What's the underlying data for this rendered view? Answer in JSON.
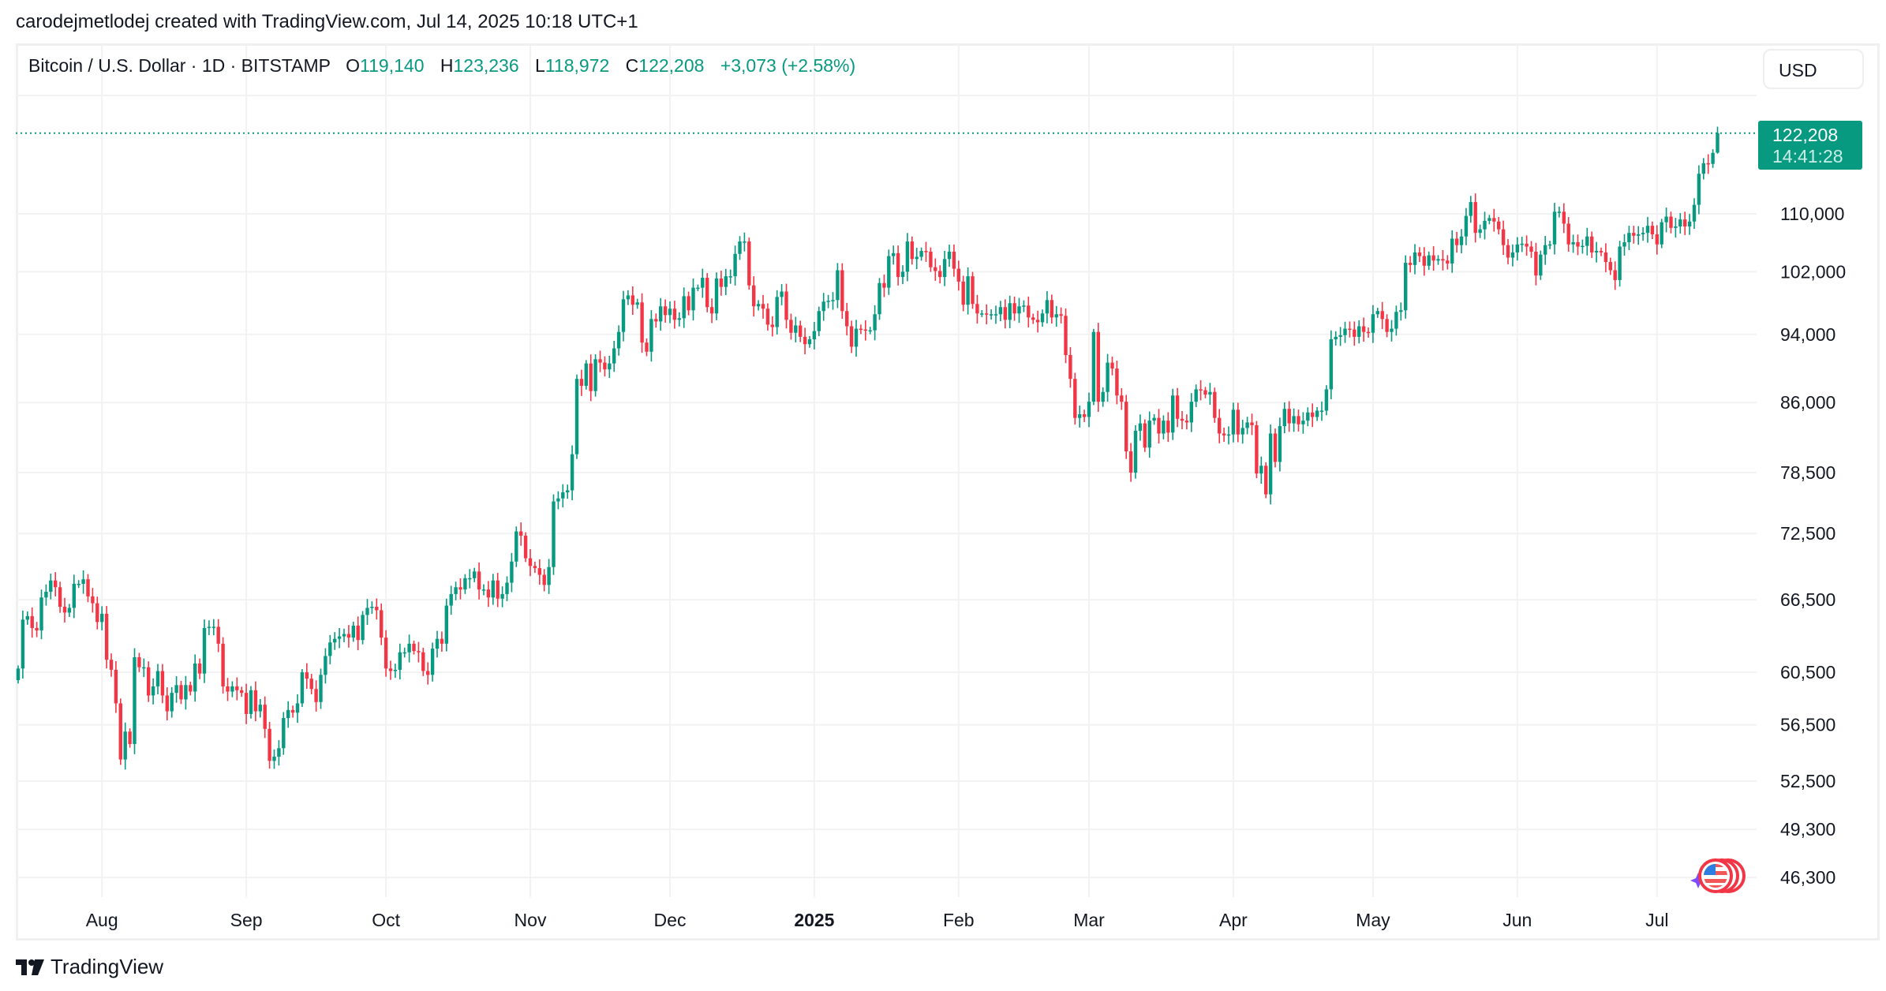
{
  "caption": "carodejmetlodej created with TradingView.com, Jul 14, 2025 10:18 UTC+1",
  "legend": {
    "symbol": "Bitcoin / U.S. Dollar · 1D · BITSTAMP",
    "open_label": "O",
    "open": "119,140",
    "high_label": "H",
    "high": "123,236",
    "low_label": "L",
    "low": "118,972",
    "close_label": "C",
    "close": "122,208",
    "change": "+3,073 (+2.58%)"
  },
  "currency_button": "USD",
  "price_tag": {
    "price": "122,208",
    "countdown": "14:41:28"
  },
  "footer": {
    "brand": "TradingView"
  },
  "colors": {
    "up": "#089981",
    "down": "#f23645",
    "grid": "#f2f2f2",
    "text": "#131722"
  },
  "chart_data": {
    "type": "candlestick",
    "interval": "1D",
    "y_scale": "log",
    "grid": true,
    "x_tick_labels": [
      "Aug",
      "Sep",
      "Oct",
      "Nov",
      "Dec",
      "2025",
      "Feb",
      "Mar",
      "Apr",
      "May",
      "Jun",
      "Jul"
    ],
    "y_ticks": [
      110000,
      102000,
      94000,
      86000,
      78500,
      72500,
      66500,
      60500,
      56500,
      52500,
      49300,
      46300
    ],
    "y_tick_labels": [
      "110,000",
      "102,000",
      "94,000",
      "86,000",
      "78,500",
      "72,500",
      "66,500",
      "60,500",
      "56,500",
      "52,500",
      "49,300",
      "46,300"
    ],
    "last_candle": {
      "open": 119140,
      "high": 123236,
      "low": 118972,
      "close": 122208
    },
    "closes": [
      60800,
      64800,
      65100,
      64100,
      63900,
      66700,
      67200,
      68200,
      67600,
      65900,
      65400,
      65800,
      67900,
      67900,
      68300,
      66800,
      66200,
      64600,
      65300,
      61500,
      60700,
      58100,
      54000,
      56000,
      55100,
      61700,
      60900,
      60900,
      58700,
      59400,
      60600,
      58700,
      57500,
      58900,
      59500,
      58400,
      59500,
      59000,
      61200,
      60400,
      64100,
      64200,
      64200,
      62800,
      59400,
      59000,
      59400,
      59100,
      58900,
      57300,
      59100,
      57500,
      58000,
      56200,
      53900,
      54200,
      54800,
      57000,
      57600,
      57400,
      58100,
      60500,
      60000,
      59200,
      58200,
      60300,
      61800,
      62900,
      63200,
      63400,
      63600,
      63300,
      64300,
      63100,
      65200,
      65800,
      65900,
      65600,
      63300,
      60800,
      60600,
      60700,
      62100,
      62100,
      62800,
      62200,
      62100,
      60600,
      60300,
      62400,
      63200,
      62800,
      66000,
      67000,
      67600,
      67400,
      68400,
      68400,
      69000,
      67400,
      67400,
      66700,
      68200,
      66600,
      67000,
      68000,
      69900,
      72700,
      72300,
      70200,
      69500,
      69300,
      68700,
      67800,
      69400,
      75600,
      75900,
      76500,
      76700,
      80400,
      88700,
      87900,
      90500,
      87300,
      91000,
      90600,
      89800,
      90500,
      92300,
      94300,
      98400,
      98900,
      97700,
      98000,
      93000,
      91900,
      95900,
      95600,
      97500,
      96400,
      97200,
      95800,
      96000,
      98800,
      97000,
      99900,
      99900,
      101200,
      97400,
      96600,
      101100,
      100000,
      101400,
      101400,
      104400,
      106100,
      106100,
      100200,
      97500,
      97800,
      97200,
      95200,
      94900,
      98700,
      99400,
      95800,
      94200,
      95100,
      93700,
      92800,
      93400,
      94400,
      96900,
      98100,
      98200,
      98300,
      102200,
      96900,
      95000,
      92500,
      94700,
      94600,
      94500,
      94500,
      96500,
      100500,
      99900,
      104100,
      104500,
      101300,
      102000,
      106100,
      103700,
      104000,
      104800,
      104700,
      102600,
      102100,
      101300,
      103700,
      104700,
      102400,
      100700,
      97700,
      101400,
      97800,
      96600,
      96600,
      96500,
      96500,
      96500,
      97400,
      95800,
      97900,
      96600,
      97500,
      97600,
      96100,
      95800,
      95500,
      96600,
      98300,
      96100,
      96500,
      96300,
      91500,
      88700,
      84300,
      84700,
      84400,
      86100,
      94300,
      86100,
      87200,
      90600,
      89900,
      86800,
      86100,
      80700,
      78500,
      82900,
      83700,
      81100,
      84000,
      84300,
      82600,
      84000,
      82700,
      86800,
      84200,
      84000,
      83800,
      86100,
      87500,
      87400,
      86900,
      87200,
      84300,
      82600,
      82400,
      82500,
      85200,
      82500,
      83200,
      83800,
      83500,
      78400,
      79200,
      76300,
      82600,
      79600,
      83400,
      85300,
      83700,
      84500,
      83600,
      84000,
      84900,
      84400,
      85100,
      85100,
      87500,
      93400,
      93700,
      93900,
      94700,
      94600,
      93700,
      95000,
      94300,
      94200,
      96500,
      96900,
      95900,
      94300,
      94700,
      96800,
      97000,
      103200,
      102900,
      104600,
      104100,
      102800,
      104200,
      103500,
      103700,
      103500,
      103100,
      106500,
      105600,
      106800,
      109700,
      111700,
      107300,
      107800,
      109000,
      109400,
      108900,
      107800,
      105600,
      103900,
      104600,
      105700,
      105800,
      105400,
      104700,
      101500,
      104300,
      105600,
      105700,
      110300,
      110300,
      108600,
      105700,
      106000,
      105400,
      105500,
      106800,
      104600,
      104800,
      104600,
      103300,
      102200,
      100900,
      105400,
      106000,
      107300,
      106900,
      107100,
      107300,
      108300,
      107100,
      105700,
      108800,
      109600,
      108000,
      108200,
      109200,
      108200,
      108900,
      111300,
      115900,
      117500,
      117400,
      119100,
      122208
    ]
  }
}
